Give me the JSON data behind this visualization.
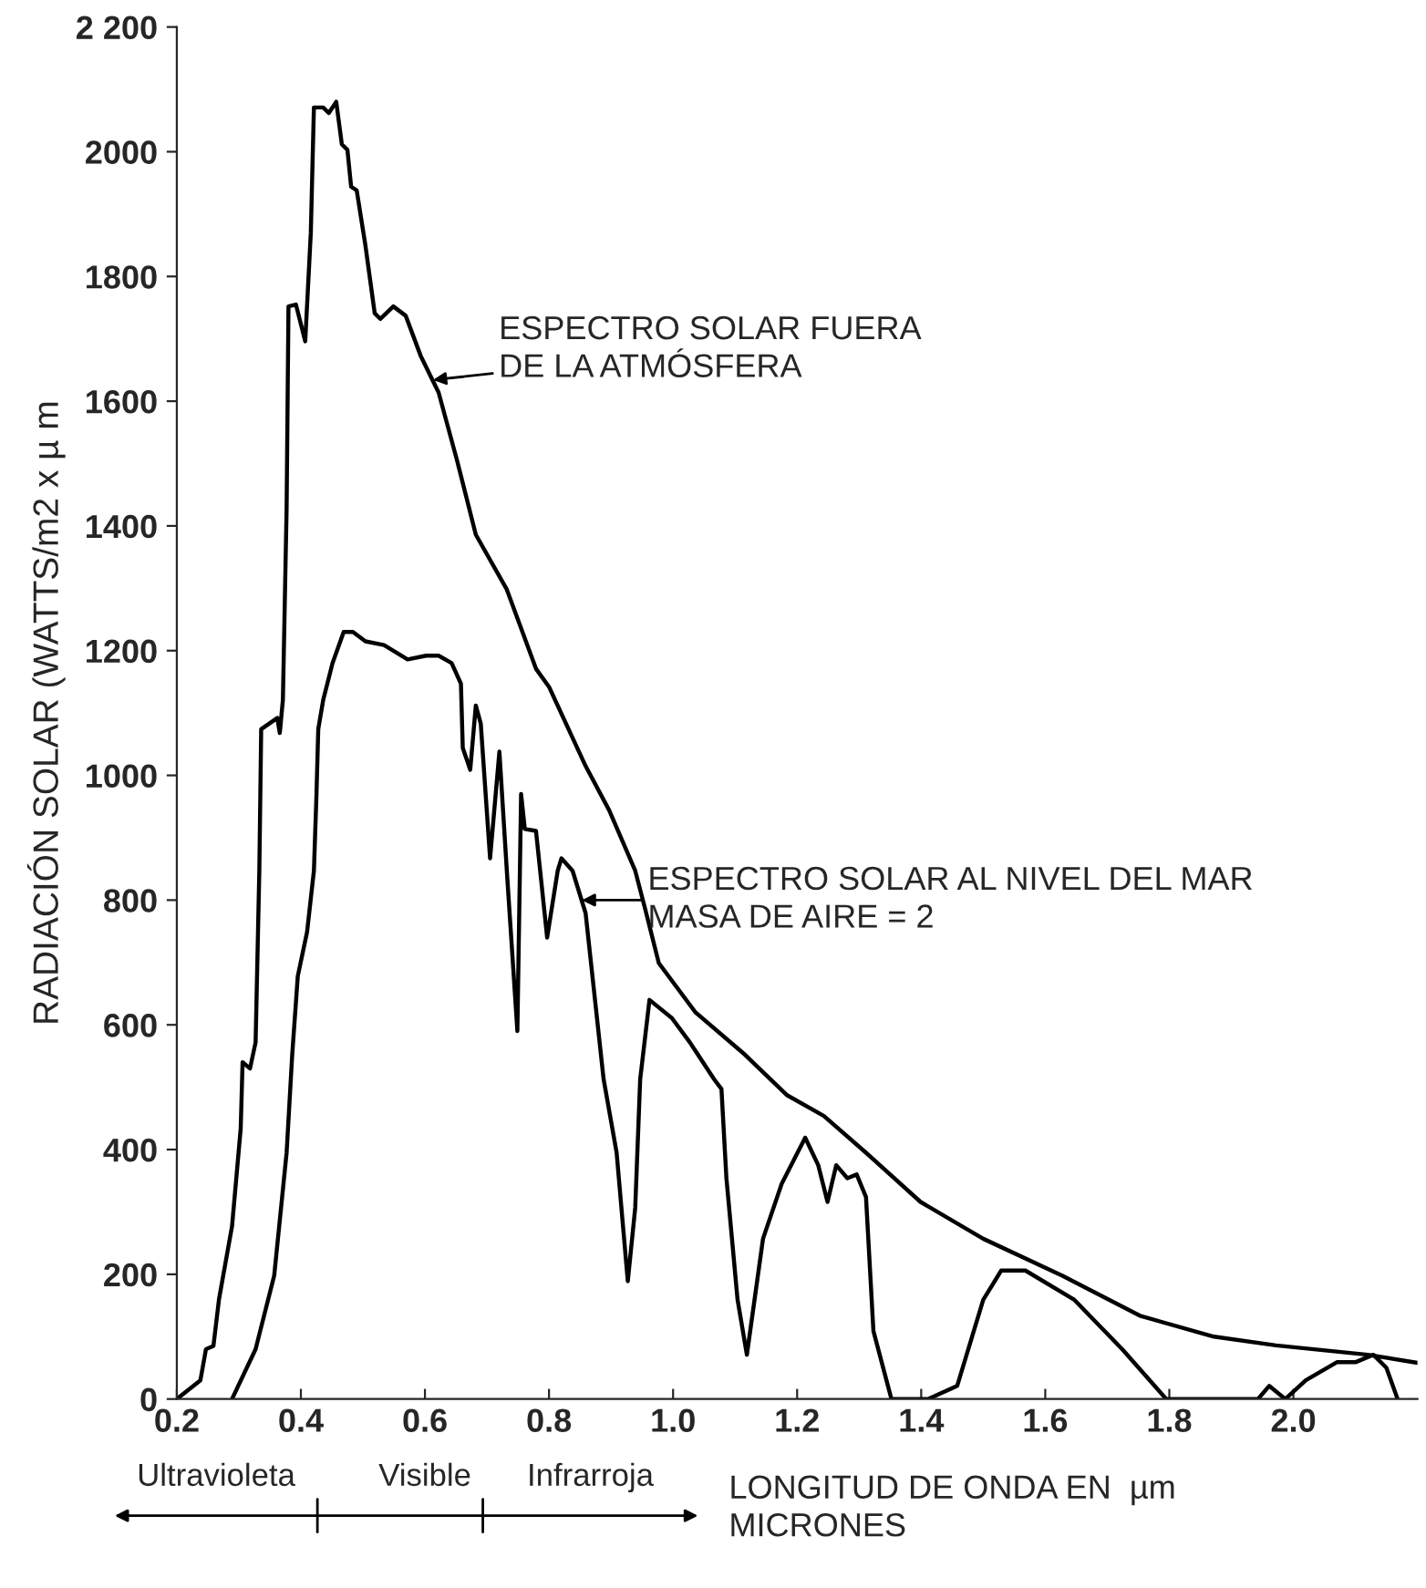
{
  "chart_data": {
    "type": "line",
    "xlabel": "LONGITUD DE ONDA EN  µm\nMICRONES",
    "ylabel": "RADIACIÓN SOLAR (WATTS/m2 x µ m",
    "xlim": [
      0.2,
      2.2
    ],
    "ylim": [
      0,
      2200
    ],
    "xticks": [
      {
        "value": 0.2,
        "label": "0.2"
      },
      {
        "value": 0.4,
        "label": "0.4"
      },
      {
        "value": 0.6,
        "label": "0.6"
      },
      {
        "value": 0.8,
        "label": "0.8"
      },
      {
        "value": 1.0,
        "label": "1.0"
      },
      {
        "value": 1.2,
        "label": "1.2"
      },
      {
        "value": 1.4,
        "label": "1.4"
      },
      {
        "value": 1.6,
        "label": "1.6"
      },
      {
        "value": 1.8,
        "label": "1.8"
      },
      {
        "value": 2.0,
        "label": "2.0"
      }
    ],
    "yticks": [
      0,
      200,
      400,
      600,
      800,
      1000,
      1200,
      1400,
      1600,
      1800,
      2000,
      {
        "value": 2200,
        "label": "2 200"
      }
    ],
    "series": [
      {
        "color": "#000000",
        "x": [
          0.2,
          0.238,
          0.247,
          0.259,
          0.268,
          0.289,
          0.303,
          0.306,
          0.318,
          0.327,
          0.333,
          0.336,
          0.362,
          0.366,
          0.371,
          0.377,
          0.38,
          0.392,
          0.407,
          0.416,
          0.421,
          0.436,
          0.445,
          0.457,
          0.466,
          0.475,
          0.481,
          0.49,
          0.504,
          0.519,
          0.528,
          0.549,
          0.569,
          0.593,
          0.622,
          0.652,
          0.682,
          0.732,
          0.779,
          0.8,
          0.859,
          0.897,
          0.939,
          0.947,
          0.956,
          0.977,
          1.036,
          1.116,
          1.184,
          1.243,
          1.311,
          1.399,
          1.5,
          1.627,
          1.754,
          1.872,
          1.972,
          2.12,
          2.2
        ],
        "values": [
          0,
          30,
          80,
          85,
          160,
          277,
          434,
          540,
          530,
          572,
          847,
          1074,
          1092,
          1068,
          1121,
          1428,
          1752,
          1755,
          1696,
          1870,
          2071,
          2071,
          2062,
          2080,
          2012,
          2003,
          1944,
          1938,
          1850,
          1741,
          1732,
          1752,
          1737,
          1673,
          1614,
          1504,
          1386,
          1298,
          1171,
          1142,
          1015,
          944,
          847,
          null,
          782,
          699,
          620,
          552,
          487,
          454,
          395,
          316,
          257,
          198,
          133,
          100,
          86,
          71,
          58
        ]
      },
      {
        "color": "#000000",
        "x": [
          0.289,
          0.327,
          0.357,
          0.377,
          0.386,
          0.395,
          0.41,
          0.421,
          0.425,
          0.428,
          0.436,
          0.451,
          0.469,
          0.484,
          0.504,
          0.534,
          0.572,
          0.602,
          0.622,
          0.643,
          0.658,
          0.661,
          0.673,
          0.682,
          0.69,
          0.705,
          0.72,
          0.732,
          0.749,
          0.755,
          0.761,
          0.779,
          0.797,
          0.814,
          0.82,
          0.838,
          0.859,
          0.888,
          0.909,
          0.927,
          0.939,
          0.947,
          0.962,
          0.998,
          1.027,
          1.066,
          1.078,
          1.086,
          1.104,
          1.119,
          1.145,
          1.175,
          1.213,
          1.234,
          1.249,
          1.263,
          1.281,
          1.296,
          1.311,
          1.323,
          1.352,
          1.411,
          1.458,
          1.5,
          1.529,
          1.568,
          1.647,
          1.724,
          1.795,
          1.943,
          1.961,
          1.987,
          2.02,
          2.07,
          2.1,
          2.129,
          2.15,
          2.168
        ],
        "values": [
          0,
          80,
          198,
          395,
          552,
          678,
          749,
          847,
          965,
          1074,
          1121,
          1180,
          1230,
          1230,
          1215,
          1209,
          1186,
          1192,
          1192,
          1180,
          1147,
          1044,
          1009,
          1112,
          1083,
          867,
          1038,
          847,
          590,
          970,
          914,
          911,
          740,
          847,
          867,
          847,
          779,
          513,
          395,
          189,
          307,
          513,
          640,
          611,
          572,
          513,
          497,
          354,
          159,
          71,
          257,
          345,
          419,
          375,
          316,
          375,
          354,
          360,
          324,
          109,
          0,
          0,
          21,
          159,
          206,
          206,
          159,
          80,
          0,
          0,
          21,
          0,
          30,
          59,
          59,
          71,
          50,
          0
        ]
      }
    ],
    "annotations": [
      {
        "text": "ESPECTRO SOLAR FUERA\nDE LA ATMÓSFERA",
        "x": 0.613,
        "y": 1634
      },
      {
        "text": "ESPECTRO SOLAR AL NIVEL DEL MAR\nMASA DE AIRE = 2",
        "x": 0.853,
        "y": 800
      },
      "Ultravioleta",
      "Visible",
      "Infrarroja"
    ]
  }
}
